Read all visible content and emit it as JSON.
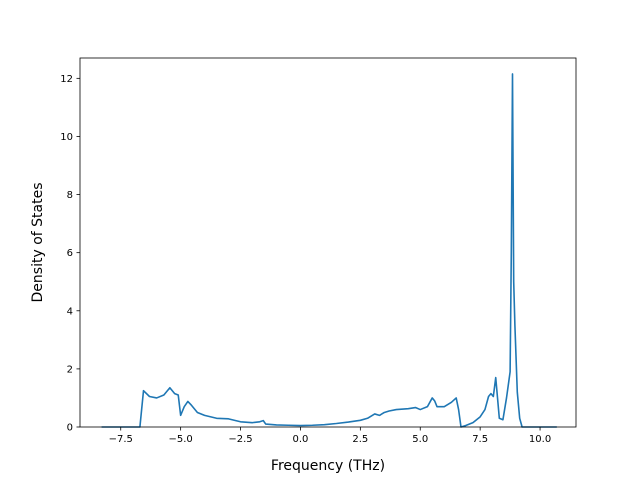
{
  "chart_data": {
    "type": "line",
    "title": "",
    "xlabel": "Frequency (THz)",
    "ylabel": "Density of States",
    "xlim": [
      -9.2,
      11.5
    ],
    "ylim": [
      0,
      12.7
    ],
    "grid": false,
    "legend": "none",
    "x_ticks": [
      -7.5,
      -5.0,
      -2.5,
      0.0,
      2.5,
      5.0,
      7.5,
      10.0
    ],
    "x_tick_labels": [
      "−7.5",
      "−5.0",
      "−2.5",
      "0.0",
      "2.5",
      "5.0",
      "7.5",
      "10.0"
    ],
    "y_ticks": [
      0,
      2,
      4,
      6,
      8,
      10,
      12
    ],
    "y_tick_labels": [
      "0",
      "2",
      "4",
      "6",
      "8",
      "10",
      "12"
    ],
    "series": [
      {
        "color": "#1f77b4",
        "x": [
          -8.3,
          -6.7,
          -6.55,
          -6.3,
          -6.0,
          -5.7,
          -5.45,
          -5.25,
          -5.1,
          -5.0,
          -4.85,
          -4.7,
          -4.55,
          -4.3,
          -4.0,
          -3.5,
          -3.0,
          -2.7,
          -2.5,
          -2.0,
          -1.7,
          -1.55,
          -1.45,
          -1.0,
          -0.5,
          0.0,
          0.5,
          1.0,
          1.5,
          2.0,
          2.5,
          2.8,
          3.1,
          3.3,
          3.5,
          3.7,
          4.0,
          4.5,
          4.8,
          5.0,
          5.3,
          5.5,
          5.6,
          5.7,
          6.0,
          6.3,
          6.5,
          6.6,
          6.7,
          6.9,
          7.2,
          7.5,
          7.7,
          7.85,
          7.95,
          8.05,
          8.15,
          8.3,
          8.45,
          8.6,
          8.75,
          8.8,
          8.85,
          8.9,
          8.95,
          9.05,
          9.15,
          9.25,
          9.5,
          10.0,
          10.7
        ],
        "y": [
          0,
          0,
          1.25,
          1.05,
          1.0,
          1.1,
          1.35,
          1.15,
          1.1,
          0.4,
          0.7,
          0.88,
          0.75,
          0.5,
          0.4,
          0.3,
          0.28,
          0.22,
          0.18,
          0.15,
          0.18,
          0.22,
          0.1,
          0.07,
          0.06,
          0.05,
          0.06,
          0.08,
          0.12,
          0.17,
          0.23,
          0.3,
          0.45,
          0.4,
          0.5,
          0.55,
          0.6,
          0.63,
          0.67,
          0.6,
          0.7,
          1.0,
          0.9,
          0.7,
          0.7,
          0.85,
          1.0,
          0.6,
          0.0,
          0.05,
          0.15,
          0.35,
          0.6,
          1.05,
          1.15,
          1.05,
          1.7,
          0.3,
          0.25,
          1.0,
          1.9,
          6.0,
          12.15,
          5.0,
          3.5,
          1.2,
          0.3,
          0.0,
          0.0,
          0.0,
          0.0
        ]
      }
    ]
  }
}
